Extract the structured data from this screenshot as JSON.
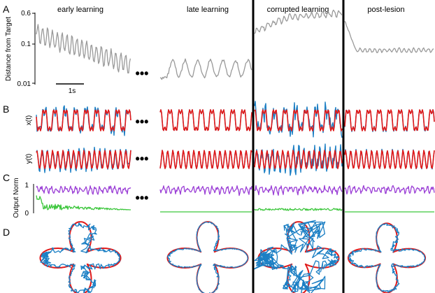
{
  "panel_labels": {
    "a": "A",
    "b": "B",
    "c": "C",
    "d": "D"
  },
  "phases": [
    "early learning",
    "late learning",
    "corrupted learning",
    "post-lesion"
  ],
  "ellipsis": "•••",
  "panel_a": {
    "ylabel": "Distance from Target",
    "yticks": [
      "0.6",
      "0.1",
      "0.01"
    ],
    "scalebar": "1s"
  },
  "panel_b": {
    "row_x": "x(t)",
    "row_y": "y(t)"
  },
  "panel_c": {
    "ylabel": "Output Norm",
    "yticks": [
      "1",
      "0"
    ]
  },
  "colors": {
    "target": "#e11a1a",
    "network": "#1b7fc4",
    "distance": "#999999",
    "norm_purple": "#9b3fd6",
    "norm_green": "#3cc63c",
    "divider": "#000000"
  },
  "chart_data": [
    {
      "type": "line",
      "panel": "A",
      "ylabel": "Distance from Target",
      "yscale": "log",
      "ylim": [
        0.005,
        0.6
      ],
      "series": [
        {
          "segment": "early learning",
          "level_range": [
            0.015,
            0.2
          ]
        },
        {
          "segment": "late learning",
          "level_range": [
            0.007,
            0.03
          ]
        },
        {
          "segment": "corrupted learning",
          "level_range": [
            0.2,
            0.55
          ]
        },
        {
          "segment": "post-lesion",
          "level_range": [
            0.04,
            0.06
          ]
        }
      ]
    },
    {
      "type": "line",
      "panel": "C",
      "ylabel": "Output Norm",
      "ylim": [
        0,
        1
      ]
    }
  ]
}
